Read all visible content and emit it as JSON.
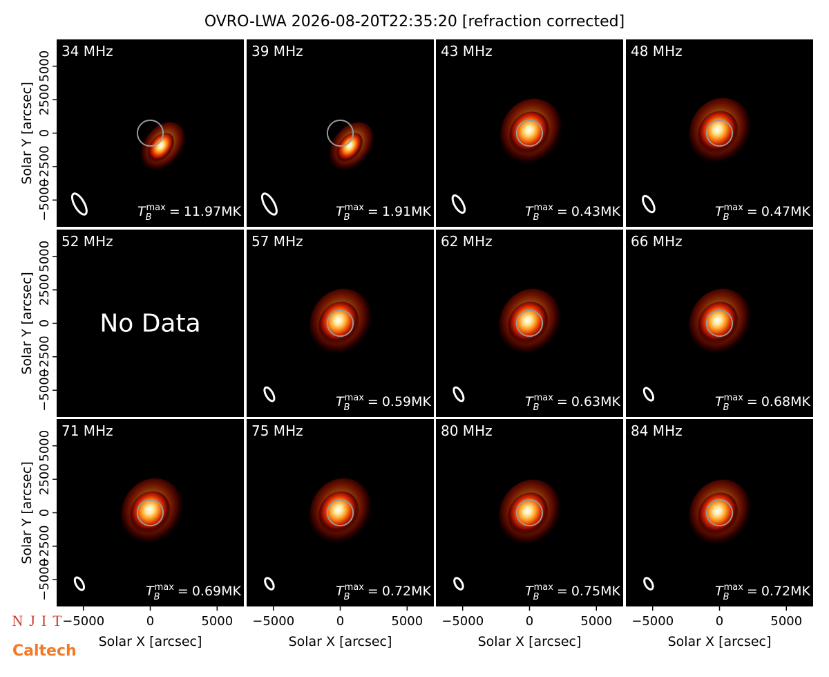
{
  "chart_data": {
    "type": "image-grid",
    "title": "OVRO-LWA 2026-08-20T22:35:20 [refraction corrected]",
    "x_label": "Solar X [arcsec]",
    "y_label": "Solar Y [arcsec]",
    "xlim": [
      -7000,
      7000
    ],
    "ylim": [
      -7000,
      7000
    ],
    "xticks": [
      {
        "value": -5000,
        "label": "−5000"
      },
      0,
      5000
    ],
    "yticks": [
      {
        "value": -5000,
        "label": "−5000"
      },
      {
        "value": -2500,
        "label": "−2500"
      },
      0,
      2500,
      5000
    ],
    "tb_symbol": "T",
    "tb_sub": "B",
    "tb_sup": "max",
    "tb_eq": "=",
    "panels": [
      {
        "freq": "34 MHz",
        "tb": "11.97MK",
        "source": [
          800,
          -1100
        ]
      },
      {
        "freq": "39 MHz",
        "tb": "1.91MK",
        "source": [
          700,
          -1100
        ]
      },
      {
        "freq": "43 MHz",
        "tb": "0.43MK",
        "source": [
          0,
          0
        ]
      },
      {
        "freq": "48 MHz",
        "tb": "0.47MK",
        "source": [
          -100,
          50
        ]
      },
      {
        "freq": "52 MHz",
        "note": "No Data"
      },
      {
        "freq": "57 MHz",
        "tb": "0.59MK",
        "source": [
          -100,
          0
        ]
      },
      {
        "freq": "62 MHz",
        "tb": "0.63MK",
        "source": [
          -100,
          0
        ]
      },
      {
        "freq": "66 MHz",
        "tb": "0.68MK",
        "source": [
          -100,
          0
        ]
      },
      {
        "freq": "71 MHz",
        "tb": "0.69MK",
        "source": [
          0,
          0
        ]
      },
      {
        "freq": "75 MHz",
        "tb": "0.72MK",
        "source": [
          -100,
          0
        ]
      },
      {
        "freq": "80 MHz",
        "tb": "0.75MK",
        "source": [
          -100,
          -100
        ]
      },
      {
        "freq": "84 MHz",
        "tb": "0.72MK",
        "source": [
          -100,
          -100
        ]
      }
    ],
    "logos": {
      "njit": "NJIT",
      "caltech": "Caltech"
    }
  }
}
